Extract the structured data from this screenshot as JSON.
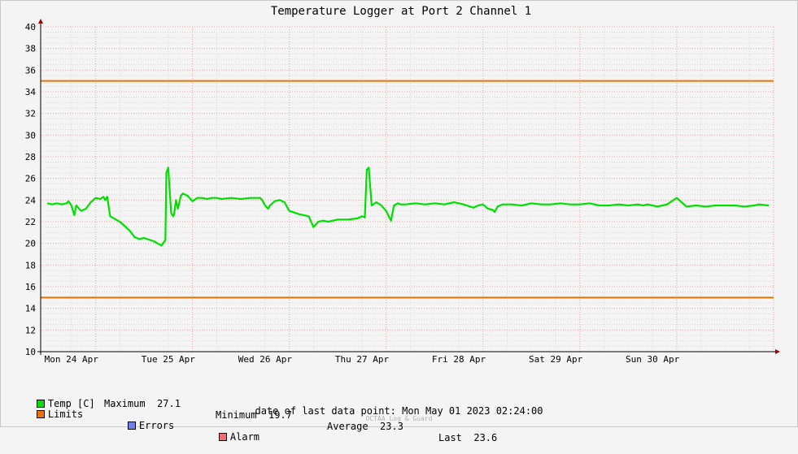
{
  "chart_data": {
    "type": "line",
    "title": "Temperature Logger at Port 2 Channel 1",
    "ylim": [
      10,
      40
    ],
    "yticks": [
      10,
      12,
      14,
      16,
      18,
      20,
      22,
      24,
      26,
      28,
      30,
      32,
      34,
      36,
      38,
      40
    ],
    "xlim": [
      0,
      7.5
    ],
    "xtick_labels": [
      "Mon 24 Apr",
      "Tue 25 Apr",
      "Wed 26 Apr",
      "Thu 27 Apr",
      "Fri 28 Apr",
      "Sat 29 Apr",
      "Sun 30 Apr"
    ],
    "xtick_positions": [
      0,
      1,
      2,
      3,
      4,
      5,
      6
    ],
    "grid": true,
    "limits": {
      "upper": 35,
      "lower": 15
    },
    "series": [
      {
        "name": "Temp [C]",
        "color": "#00e000",
        "x": [
          0,
          0.05,
          0.1,
          0.15,
          0.2,
          0.22,
          0.25,
          0.28,
          0.3,
          0.35,
          0.4,
          0.45,
          0.5,
          0.55,
          0.58,
          0.6,
          0.62,
          0.65,
          0.75,
          0.85,
          0.9,
          0.95,
          1.0,
          1.1,
          1.18,
          1.22,
          1.23,
          1.25,
          1.28,
          1.3,
          1.31,
          1.33,
          1.35,
          1.38,
          1.4,
          1.45,
          1.5,
          1.55,
          1.6,
          1.65,
          1.7,
          1.75,
          1.8,
          1.9,
          2.0,
          2.1,
          2.2,
          2.22,
          2.25,
          2.28,
          2.3,
          2.35,
          2.4,
          2.45,
          2.5,
          2.6,
          2.7,
          2.75,
          2.8,
          2.85,
          2.9,
          3.0,
          3.1,
          3.2,
          3.25,
          3.28,
          3.3,
          3.32,
          3.35,
          3.4,
          3.45,
          3.5,
          3.55,
          3.58,
          3.6,
          3.62,
          3.65,
          3.7,
          3.8,
          3.9,
          4.0,
          4.1,
          4.2,
          4.3,
          4.4,
          4.45,
          4.5,
          4.55,
          4.6,
          4.62,
          4.65,
          4.7,
          4.8,
          4.9,
          5.0,
          5.1,
          5.2,
          5.3,
          5.4,
          5.5,
          5.6,
          5.7,
          5.8,
          5.9,
          6.0,
          6.1,
          6.15,
          6.2,
          6.25,
          6.3,
          6.35,
          6.4,
          6.5,
          6.6,
          6.7,
          6.8,
          6.9,
          7.0,
          7.1,
          7.2,
          7.3,
          7.35,
          7.45
        ],
        "y": [
          23.7,
          23.6,
          23.7,
          23.6,
          23.7,
          23.9,
          23.5,
          22.6,
          23.5,
          23.0,
          23.2,
          23.8,
          24.2,
          24.1,
          24.3,
          24.0,
          24.3,
          22.5,
          22.0,
          21.2,
          20.6,
          20.4,
          20.5,
          20.2,
          19.8,
          20.3,
          26.5,
          27.0,
          22.8,
          22.5,
          22.7,
          24.0,
          23.2,
          24.4,
          24.6,
          24.4,
          23.9,
          24.2,
          24.2,
          24.1,
          24.2,
          24.2,
          24.1,
          24.2,
          24.1,
          24.2,
          24.2,
          24.0,
          23.5,
          23.2,
          23.5,
          23.9,
          24.0,
          23.8,
          23.0,
          22.7,
          22.5,
          21.5,
          22.0,
          22.1,
          22.0,
          22.2,
          22.2,
          22.3,
          22.5,
          22.4,
          26.8,
          27.0,
          23.5,
          23.8,
          23.5,
          23.0,
          22.1,
          23.5,
          23.6,
          23.7,
          23.6,
          23.6,
          23.7,
          23.6,
          23.7,
          23.6,
          23.8,
          23.6,
          23.3,
          23.5,
          23.6,
          23.2,
          23.1,
          22.9,
          23.4,
          23.6,
          23.6,
          23.5,
          23.7,
          23.6,
          23.6,
          23.7,
          23.6,
          23.6,
          23.7,
          23.5,
          23.5,
          23.6,
          23.5,
          23.6,
          23.5,
          23.6,
          23.5,
          23.4,
          23.5,
          23.6,
          24.2,
          23.4,
          23.5,
          23.4,
          23.5,
          23.5,
          23.5,
          23.4,
          23.5,
          23.6,
          23.5
        ]
      }
    ]
  },
  "legend": {
    "temp_label": "Temp [C]",
    "maximum_label": "Maximum",
    "maximum_value": "27.1",
    "minimum_label": "Minimum",
    "minimum_value": "19.7",
    "average_label": "Average",
    "average_value": "23.3",
    "last_label": "Last",
    "last_value": "23.6",
    "limits_label": "Limits",
    "errors_label": "Errors",
    "alarm_label": "Alarm"
  },
  "colors": {
    "temp": "#00e000",
    "limits": "#f07000",
    "errors": "#7080f0",
    "alarm": "#f07070",
    "major_grid": "#f0a0a0",
    "minor_grid": "#d8d8d8"
  },
  "footer": {
    "last_point_label": "date of last data point:",
    "last_point_value": "Mon May 01 2023 02:24:00",
    "watermark": "OCTAA Log & Guard"
  }
}
